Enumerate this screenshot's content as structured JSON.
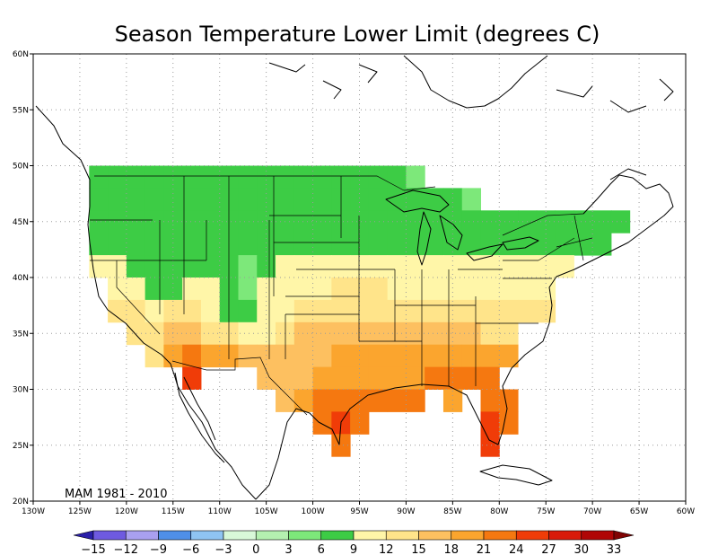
{
  "title": "Season Temperature Lower Limit (degrees C)",
  "annotation": "MAM 1981 - 2010",
  "map": {
    "lon_range": [
      -130,
      -60
    ],
    "lat_range": [
      20,
      60
    ],
    "lon_ticks": [
      {
        "v": -130,
        "label": "130W"
      },
      {
        "v": -125,
        "label": "125W"
      },
      {
        "v": -120,
        "label": "120W"
      },
      {
        "v": -115,
        "label": "115W"
      },
      {
        "v": -110,
        "label": "110W"
      },
      {
        "v": -105,
        "label": "105W"
      },
      {
        "v": -100,
        "label": "100W"
      },
      {
        "v": -95,
        "label": "95W"
      },
      {
        "v": -90,
        "label": "90W"
      },
      {
        "v": -85,
        "label": "85W"
      },
      {
        "v": -80,
        "label": "80W"
      },
      {
        "v": -75,
        "label": "75W"
      },
      {
        "v": -70,
        "label": "70W"
      },
      {
        "v": -65,
        "label": "65W"
      },
      {
        "v": -60,
        "label": "60W"
      }
    ],
    "lat_ticks": [
      {
        "v": 20,
        "label": "20N"
      },
      {
        "v": 25,
        "label": "25N"
      },
      {
        "v": 30,
        "label": "30N"
      },
      {
        "v": 35,
        "label": "35N"
      },
      {
        "v": 40,
        "label": "40N"
      },
      {
        "v": 45,
        "label": "45N"
      },
      {
        "v": 50,
        "label": "50N"
      },
      {
        "v": 55,
        "label": "55N"
      },
      {
        "v": 60,
        "label": "60N"
      }
    ],
    "grid": true,
    "cell_size_deg": 2
  },
  "colorbar": {
    "labels": [
      "-15",
      "-12",
      "-9",
      "-6",
      "-3",
      "0",
      "3",
      "6",
      "9",
      "12",
      "15",
      "18",
      "21",
      "24",
      "27",
      "30",
      "33"
    ],
    "colors": [
      "#2a1fa8",
      "#6e5ae0",
      "#a9a0f0",
      "#4f8fe8",
      "#8fc4f2",
      "#d8f8d8",
      "#b4f0b0",
      "#7de87a",
      "#3dcc45",
      "#fff6a8",
      "#ffe48a",
      "#fdc060",
      "#fba52e",
      "#f57810",
      "#f03c08",
      "#d81a0a",
      "#b00606",
      "#800404"
    ]
  },
  "chart_data": {
    "type": "heatmap",
    "title": "Season Temperature Lower Limit (degrees C)",
    "xlabel": "",
    "ylabel": "",
    "x_range": [
      -130,
      -60
    ],
    "y_range": [
      20,
      60
    ],
    "note": "values: lower limit temperature (degC) per 2x2 degree cell, [lon_left, lat_bottom, value]",
    "levels": [
      -15,
      -12,
      -9,
      -6,
      -3,
      0,
      3,
      6,
      9,
      12,
      15,
      18,
      21,
      24,
      27,
      30,
      33
    ],
    "cells": [
      [
        -124,
        48,
        7
      ],
      [
        -122,
        48,
        8
      ],
      [
        -120,
        48,
        7
      ],
      [
        -118,
        48,
        7
      ],
      [
        -116,
        48,
        7
      ],
      [
        -114,
        48,
        6
      ],
      [
        -112,
        48,
        6
      ],
      [
        -110,
        48,
        6
      ],
      [
        -108,
        48,
        6
      ],
      [
        -106,
        48,
        6
      ],
      [
        -104,
        48,
        6
      ],
      [
        -102,
        48,
        6
      ],
      [
        -100,
        48,
        6
      ],
      [
        -98,
        48,
        6
      ],
      [
        -96,
        48,
        7
      ],
      [
        -94,
        48,
        7
      ],
      [
        -92,
        48,
        6
      ],
      [
        -90,
        48,
        4
      ],
      [
        -124,
        46,
        7
      ],
      [
        -122,
        46,
        8
      ],
      [
        -120,
        46,
        7
      ],
      [
        -118,
        46,
        8
      ],
      [
        -116,
        46,
        7
      ],
      [
        -114,
        46,
        6
      ],
      [
        -112,
        46,
        6
      ],
      [
        -110,
        46,
        7
      ],
      [
        -108,
        46,
        6
      ],
      [
        -106,
        46,
        6
      ],
      [
        -104,
        46,
        6
      ],
      [
        -102,
        46,
        6
      ],
      [
        -100,
        46,
        6
      ],
      [
        -98,
        46,
        7
      ],
      [
        -96,
        46,
        7
      ],
      [
        -94,
        46,
        7
      ],
      [
        -92,
        46,
        6
      ],
      [
        -90,
        46,
        6
      ],
      [
        -88,
        46,
        6
      ],
      [
        -86,
        46,
        6
      ],
      [
        -84,
        46,
        4
      ],
      [
        -124,
        44,
        7
      ],
      [
        -122,
        44,
        8
      ],
      [
        -120,
        44,
        7
      ],
      [
        -118,
        44,
        7
      ],
      [
        -116,
        44,
        7
      ],
      [
        -114,
        44,
        6
      ],
      [
        -112,
        44,
        6
      ],
      [
        -110,
        44,
        7
      ],
      [
        -108,
        44,
        6
      ],
      [
        -106,
        44,
        6
      ],
      [
        -104,
        44,
        6
      ],
      [
        -102,
        44,
        7
      ],
      [
        -100,
        44,
        7
      ],
      [
        -98,
        44,
        7
      ],
      [
        -96,
        44,
        7
      ],
      [
        -94,
        44,
        7
      ],
      [
        -92,
        44,
        7
      ],
      [
        -90,
        44,
        7
      ],
      [
        -88,
        44,
        7
      ],
      [
        -86,
        44,
        7
      ],
      [
        -84,
        44,
        6
      ],
      [
        -82,
        44,
        6
      ],
      [
        -80,
        44,
        6
      ],
      [
        -78,
        44,
        6
      ],
      [
        -76,
        44,
        6
      ],
      [
        -74,
        44,
        7
      ],
      [
        -72,
        44,
        6
      ],
      [
        -70,
        44,
        6
      ],
      [
        -68,
        44,
        6
      ],
      [
        -124,
        42,
        8
      ],
      [
        -122,
        42,
        7
      ],
      [
        -120,
        42,
        7
      ],
      [
        -118,
        42,
        6
      ],
      [
        -116,
        42,
        7
      ],
      [
        -114,
        42,
        6
      ],
      [
        -112,
        42,
        6
      ],
      [
        -110,
        42,
        7
      ],
      [
        -108,
        42,
        6
      ],
      [
        -106,
        42,
        6
      ],
      [
        -104,
        42,
        7
      ],
      [
        -102,
        42,
        7
      ],
      [
        -100,
        42,
        7
      ],
      [
        -98,
        42,
        7
      ],
      [
        -96,
        42,
        7
      ],
      [
        -94,
        42,
        7
      ],
      [
        -92,
        42,
        7
      ],
      [
        -90,
        42,
        7
      ],
      [
        -88,
        42,
        7
      ],
      [
        -86,
        42,
        7
      ],
      [
        -84,
        42,
        7
      ],
      [
        -82,
        42,
        7
      ],
      [
        -80,
        42,
        7
      ],
      [
        -78,
        42,
        7
      ],
      [
        -76,
        42,
        7
      ],
      [
        -74,
        42,
        7
      ],
      [
        -72,
        42,
        7
      ],
      [
        -70,
        42,
        7
      ],
      [
        -124,
        40,
        10
      ],
      [
        -122,
        40,
        10
      ],
      [
        -120,
        40,
        7
      ],
      [
        -118,
        40,
        7
      ],
      [
        -116,
        40,
        7
      ],
      [
        -114,
        40,
        7
      ],
      [
        -112,
        40,
        7
      ],
      [
        -110,
        40,
        7
      ],
      [
        -108,
        40,
        4
      ],
      [
        -106,
        40,
        7
      ],
      [
        -104,
        40,
        9
      ],
      [
        -102,
        40,
        10
      ],
      [
        -100,
        40,
        10
      ],
      [
        -98,
        40,
        10
      ],
      [
        -96,
        40,
        10
      ],
      [
        -94,
        40,
        10
      ],
      [
        -92,
        40,
        10
      ],
      [
        -90,
        40,
        10
      ],
      [
        -88,
        40,
        10
      ],
      [
        -86,
        40,
        10
      ],
      [
        -84,
        40,
        10
      ],
      [
        -82,
        40,
        10
      ],
      [
        -80,
        40,
        10
      ],
      [
        -78,
        40,
        10
      ],
      [
        -76,
        40,
        10
      ],
      [
        -74,
        40,
        10
      ],
      [
        -122,
        38,
        11
      ],
      [
        -120,
        38,
        10
      ],
      [
        -118,
        38,
        8
      ],
      [
        -116,
        38,
        8
      ],
      [
        -114,
        38,
        10
      ],
      [
        -112,
        38,
        10
      ],
      [
        -110,
        38,
        8
      ],
      [
        -108,
        38,
        4
      ],
      [
        -106,
        38,
        10
      ],
      [
        -104,
        38,
        10
      ],
      [
        -102,
        38,
        11
      ],
      [
        -100,
        38,
        11
      ],
      [
        -98,
        38,
        13
      ],
      [
        -96,
        38,
        13
      ],
      [
        -94,
        38,
        13
      ],
      [
        -92,
        38,
        11
      ],
      [
        -90,
        38,
        11
      ],
      [
        -88,
        38,
        11
      ],
      [
        -86,
        38,
        11
      ],
      [
        -84,
        38,
        11
      ],
      [
        -82,
        38,
        11
      ],
      [
        -80,
        38,
        11
      ],
      [
        -78,
        38,
        11
      ],
      [
        -76,
        38,
        11
      ],
      [
        -122,
        36,
        13
      ],
      [
        -120,
        36,
        13
      ],
      [
        -118,
        36,
        11
      ],
      [
        -116,
        36,
        13
      ],
      [
        -114,
        36,
        14
      ],
      [
        -112,
        36,
        11
      ],
      [
        -110,
        36,
        8
      ],
      [
        -108,
        36,
        8
      ],
      [
        -106,
        36,
        10
      ],
      [
        -104,
        36,
        11
      ],
      [
        -102,
        36,
        13
      ],
      [
        -100,
        36,
        13
      ],
      [
        -98,
        36,
        14
      ],
      [
        -96,
        36,
        14
      ],
      [
        -94,
        36,
        13
      ],
      [
        -92,
        36,
        13
      ],
      [
        -90,
        36,
        14
      ],
      [
        -88,
        36,
        13
      ],
      [
        -86,
        36,
        13
      ],
      [
        -84,
        36,
        13
      ],
      [
        -82,
        36,
        13
      ],
      [
        -80,
        36,
        13
      ],
      [
        -78,
        36,
        13
      ],
      [
        -76,
        36,
        13
      ],
      [
        -120,
        34,
        13
      ],
      [
        -118,
        34,
        14
      ],
      [
        -116,
        34,
        16
      ],
      [
        -114,
        34,
        17
      ],
      [
        -112,
        34,
        14
      ],
      [
        -110,
        34,
        13
      ],
      [
        -108,
        34,
        11
      ],
      [
        -106,
        34,
        10
      ],
      [
        -104,
        34,
        13
      ],
      [
        -102,
        34,
        16
      ],
      [
        -100,
        34,
        16
      ],
      [
        -98,
        34,
        16
      ],
      [
        -96,
        34,
        17
      ],
      [
        -94,
        34,
        17
      ],
      [
        -92,
        34,
        16
      ],
      [
        -90,
        34,
        16
      ],
      [
        -88,
        34,
        16
      ],
      [
        -86,
        34,
        16
      ],
      [
        -84,
        34,
        16
      ],
      [
        -82,
        34,
        14
      ],
      [
        -80,
        34,
        14
      ],
      [
        -118,
        32,
        14
      ],
      [
        -116,
        32,
        20
      ],
      [
        -114,
        32,
        23
      ],
      [
        -112,
        32,
        20
      ],
      [
        -110,
        32,
        19
      ],
      [
        -108,
        32,
        16
      ],
      [
        -106,
        32,
        16
      ],
      [
        -104,
        32,
        16
      ],
      [
        -102,
        32,
        17
      ],
      [
        -100,
        32,
        17
      ],
      [
        -98,
        32,
        20
      ],
      [
        -96,
        32,
        20
      ],
      [
        -94,
        32,
        19
      ],
      [
        -92,
        32,
        19
      ],
      [
        -90,
        32,
        19
      ],
      [
        -88,
        32,
        19
      ],
      [
        -86,
        32,
        19
      ],
      [
        -84,
        32,
        19
      ],
      [
        -82,
        32,
        19
      ],
      [
        -80,
        32,
        19
      ],
      [
        -114,
        30,
        24
      ],
      [
        -106,
        30,
        17
      ],
      [
        -104,
        30,
        17
      ],
      [
        -102,
        30,
        17
      ],
      [
        -100,
        30,
        20
      ],
      [
        -98,
        30,
        20
      ],
      [
        -96,
        30,
        20
      ],
      [
        -94,
        30,
        20
      ],
      [
        -92,
        30,
        20
      ],
      [
        -90,
        30,
        20
      ],
      [
        -88,
        30,
        22
      ],
      [
        -86,
        30,
        22
      ],
      [
        -84,
        30,
        22
      ],
      [
        -82,
        30,
        22
      ],
      [
        -104,
        28,
        17
      ],
      [
        -102,
        28,
        19
      ],
      [
        -100,
        28,
        22
      ],
      [
        -98,
        28,
        22
      ],
      [
        -96,
        28,
        22
      ],
      [
        -94,
        28,
        23
      ],
      [
        -92,
        28,
        22
      ],
      [
        -90,
        28,
        22
      ],
      [
        -86,
        28,
        20
      ],
      [
        -82,
        28,
        22
      ],
      [
        -80,
        28,
        22
      ],
      [
        -100,
        26,
        22
      ],
      [
        -98,
        26,
        24
      ],
      [
        -96,
        26,
        22
      ],
      [
        -82,
        26,
        24
      ],
      [
        -80,
        26,
        23
      ],
      [
        -98,
        24,
        22
      ],
      [
        -82,
        24,
        24
      ]
    ]
  }
}
